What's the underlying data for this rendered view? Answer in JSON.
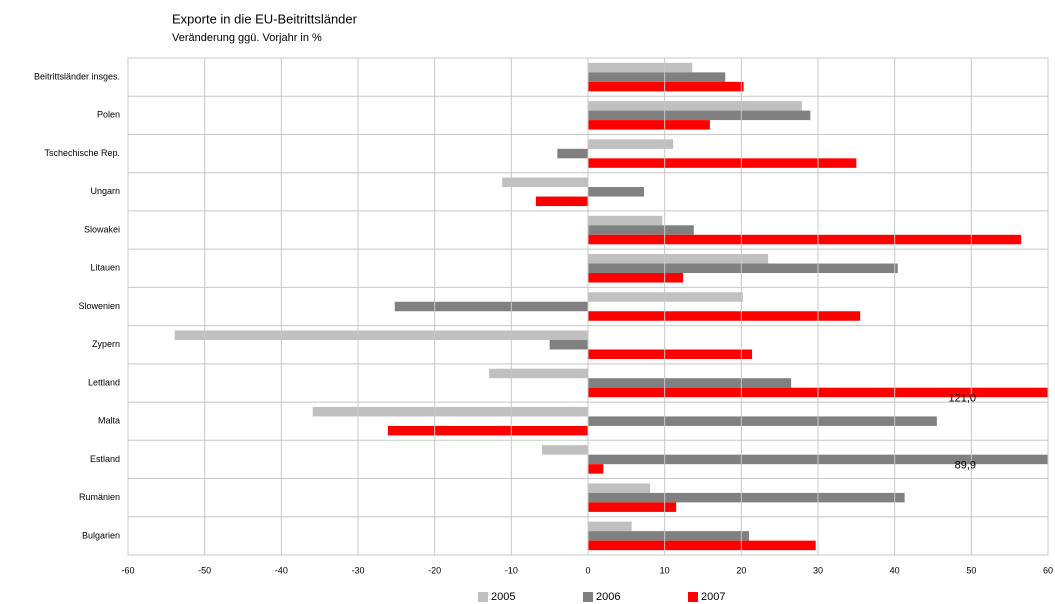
{
  "chart_data": {
    "type": "hbar",
    "title": "Exporte in die EU-Beitrittsländer",
    "subtitle": "Veränderung ggü. Vorjahr in %",
    "categories": [
      "Beitrittsländer insges.",
      "Polen",
      "Tschechische Rep.",
      "Ungarn",
      "Slowakei",
      "Litauen",
      "Slowenien",
      "Zypern",
      "Lettland",
      "Malta",
      "Estland",
      "Rumänien",
      "Bulgarien"
    ],
    "series": [
      {
        "name": "2005",
        "color": "#c0c0c0",
        "values": [
          13.6,
          27.9,
          11.1,
          -11.2,
          9.7,
          23.5,
          20.2,
          -53.9,
          -12.9,
          -35.9,
          -6.0,
          8.1,
          5.7
        ]
      },
      {
        "name": "2006",
        "color": "#808080",
        "values": [
          17.9,
          29.0,
          -4.0,
          7.3,
          13.8,
          40.4,
          -25.2,
          -5.0,
          26.5,
          45.5,
          89.9,
          41.3,
          21.0
        ],
        "value_labels": [
          null,
          null,
          null,
          null,
          null,
          null,
          null,
          null,
          null,
          null,
          "89,9",
          null,
          null
        ]
      },
      {
        "name": "2007",
        "color": "#ff0000",
        "values": [
          20.3,
          15.9,
          35.0,
          -6.8,
          56.5,
          12.4,
          35.5,
          21.4,
          121.0,
          -26.1,
          2.0,
          11.5,
          29.7
        ],
        "value_labels": [
          null,
          null,
          null,
          null,
          null,
          null,
          null,
          null,
          "121,0",
          null,
          null,
          null,
          null
        ]
      }
    ],
    "xlim": [
      -60,
      60
    ],
    "xticks": [
      -60,
      -50,
      -40,
      -30,
      -20,
      -10,
      0,
      10,
      20,
      30,
      40,
      50,
      60
    ],
    "grid": true,
    "legend": "bottom"
  }
}
